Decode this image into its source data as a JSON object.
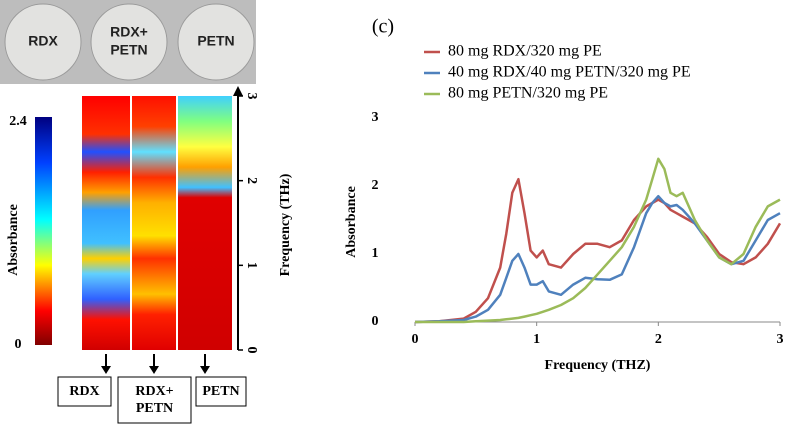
{
  "photo_labels": [
    [
      "RDX"
    ],
    [
      "RDX+",
      "PETN"
    ],
    [
      "PETN"
    ]
  ],
  "chart_data": [
    {
      "type": "heatmap",
      "categories": [
        [
          "RDX"
        ],
        [
          "RDX+",
          "PETN"
        ],
        [
          "PETN"
        ]
      ],
      "ylabel": "Frequency (THz)",
      "ylim": [
        0,
        3
      ],
      "yticks": [
        0,
        1,
        2,
        3
      ],
      "colorbar": {
        "label": "Absorbance",
        "lim": [
          0,
          2.4
        ],
        "ticks": [
          0,
          2.4
        ]
      }
    },
    {
      "type": "line",
      "title": "(c)",
      "xlabel": "Frequency (THZ)",
      "ylabel": "Absorbance",
      "xlim": [
        0,
        3
      ],
      "ylim": [
        0,
        3
      ],
      "xticks": [
        0,
        1,
        2,
        3
      ],
      "yticks": [
        0,
        1,
        2,
        3
      ],
      "x": [
        0,
        0.2,
        0.4,
        0.5,
        0.6,
        0.7,
        0.75,
        0.8,
        0.85,
        0.9,
        0.95,
        1.0,
        1.05,
        1.1,
        1.2,
        1.3,
        1.4,
        1.5,
        1.6,
        1.7,
        1.8,
        1.9,
        1.95,
        2.0,
        2.05,
        2.1,
        2.15,
        2.2,
        2.25,
        2.3,
        2.4,
        2.5,
        2.6,
        2.7,
        2.8,
        2.9,
        3.0
      ],
      "series": [
        {
          "name": "80 mg RDX/320 mg PE",
          "color": "#c0504d",
          "values": [
            0,
            0.01,
            0.05,
            0.15,
            0.35,
            0.8,
            1.3,
            1.9,
            2.1,
            1.6,
            1.05,
            0.95,
            1.05,
            0.85,
            0.8,
            1.0,
            1.15,
            1.15,
            1.1,
            1.2,
            1.5,
            1.7,
            1.75,
            1.8,
            1.75,
            1.65,
            1.6,
            1.55,
            1.5,
            1.45,
            1.25,
            1.0,
            0.88,
            0.85,
            0.95,
            1.15,
            1.45
          ]
        },
        {
          "name": "40 mg RDX/40 mg PETN/320 mg PE",
          "color": "#4f81bd",
          "values": [
            0,
            0.01,
            0.03,
            0.08,
            0.18,
            0.4,
            0.65,
            0.9,
            1.0,
            0.8,
            0.55,
            0.55,
            0.6,
            0.45,
            0.4,
            0.55,
            0.65,
            0.63,
            0.62,
            0.7,
            1.1,
            1.6,
            1.75,
            1.85,
            1.75,
            1.7,
            1.72,
            1.65,
            1.55,
            1.45,
            1.2,
            0.95,
            0.85,
            0.9,
            1.2,
            1.5,
            1.6
          ]
        },
        {
          "name": "80 mg PETN/320 mg PE",
          "color": "#9bbb59",
          "values": [
            0,
            0,
            0,
            0.01,
            0.02,
            0.03,
            0.04,
            0.05,
            0.06,
            0.08,
            0.1,
            0.12,
            0.15,
            0.18,
            0.25,
            0.35,
            0.5,
            0.7,
            0.9,
            1.1,
            1.4,
            1.8,
            2.1,
            2.4,
            2.25,
            1.9,
            1.85,
            1.9,
            1.7,
            1.5,
            1.2,
            0.95,
            0.85,
            1.0,
            1.4,
            1.7,
            1.8
          ]
        }
      ]
    }
  ]
}
